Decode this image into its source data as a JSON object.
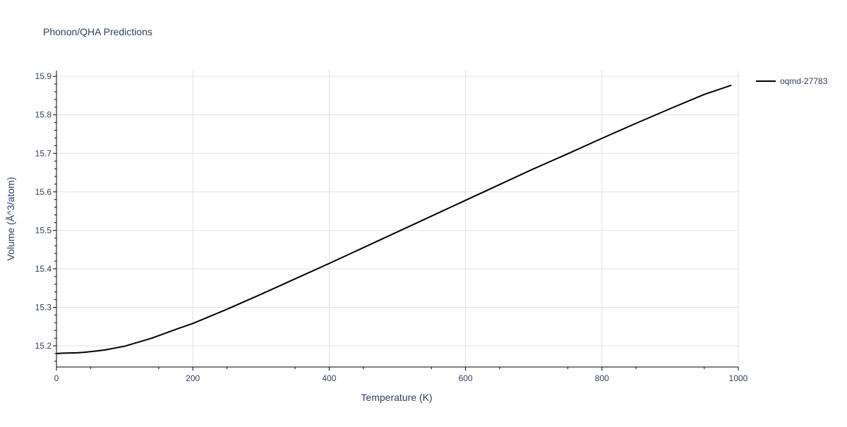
{
  "chart_data": {
    "type": "line",
    "title": "Phonon/QHA Predictions",
    "xlabel": "Temperature (K)",
    "ylabel": "Volume (Å^3/atom)",
    "xlim": [
      0,
      1000
    ],
    "ylim": [
      15.145,
      15.915
    ],
    "x_ticks": [
      "0",
      "200",
      "400",
      "600",
      "800",
      "1000"
    ],
    "y_ticks": [
      "15.2",
      "15.3",
      "15.4",
      "15.5",
      "15.6",
      "15.7",
      "15.8",
      "15.9"
    ],
    "grid": true,
    "legend_position": "top-right",
    "series": [
      {
        "name": "oqmd-27783",
        "color": "#000000",
        "x": [
          0,
          10,
          30,
          40,
          60,
          70,
          100,
          140,
          180,
          200,
          250,
          300,
          350,
          400,
          450,
          500,
          550,
          600,
          650,
          700,
          750,
          800,
          850,
          900,
          950,
          990
        ],
        "y": [
          15.18,
          15.181,
          15.182,
          15.183,
          15.187,
          15.189,
          15.199,
          15.22,
          15.246,
          15.258,
          15.295,
          15.334,
          15.374,
          15.414,
          15.455,
          15.496,
          15.537,
          15.578,
          15.619,
          15.66,
          15.699,
          15.739,
          15.778,
          15.816,
          15.853,
          15.877
        ]
      }
    ]
  }
}
